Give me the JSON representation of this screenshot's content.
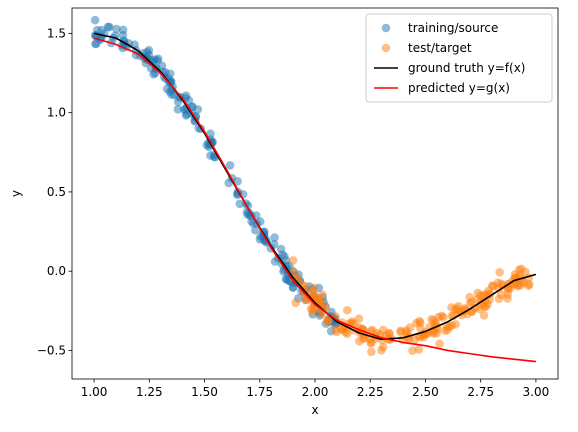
{
  "chart_data": {
    "type": "scatter",
    "xlabel": "x",
    "ylabel": "y",
    "xlim": [
      0.9,
      3.1
    ],
    "ylim": [
      -0.68,
      1.66
    ],
    "xticks": [
      1.0,
      1.25,
      1.5,
      1.75,
      2.0,
      2.25,
      2.5,
      2.75,
      3.0
    ],
    "xtick_labels": [
      "1.00",
      "1.25",
      "1.50",
      "1.75",
      "2.00",
      "2.25",
      "2.50",
      "2.75",
      "3.00"
    ],
    "yticks": [
      -0.5,
      0.0,
      0.5,
      1.0,
      1.5
    ],
    "ytick_labels": [
      "−0.5",
      "0.0",
      "0.5",
      "1.0",
      "1.5"
    ],
    "grid": false,
    "legend_position": "top-right",
    "series": [
      {
        "name": "training/source",
        "kind": "scatter",
        "color": "#1f77b4",
        "x_range": [
          1.0,
          2.1
        ],
        "count": 200,
        "noise_sd": 0.04
      },
      {
        "name": "test/target",
        "kind": "scatter",
        "color": "#ff7f0e",
        "x_range": [
          1.9,
          3.0
        ],
        "count": 200,
        "noise_sd": 0.04
      },
      {
        "name": "ground truth y=f(x)",
        "kind": "line",
        "color": "#000000",
        "x": [
          1.0,
          1.1,
          1.2,
          1.3,
          1.4,
          1.5,
          1.6,
          1.7,
          1.8,
          1.9,
          2.0,
          2.1,
          2.2,
          2.3,
          2.4,
          2.5,
          2.6,
          2.7,
          2.8,
          2.9,
          3.0
        ],
        "y": [
          1.5,
          1.47,
          1.39,
          1.26,
          1.08,
          0.87,
          0.63,
          0.39,
          0.16,
          -0.04,
          -0.2,
          -0.32,
          -0.39,
          -0.43,
          -0.42,
          -0.38,
          -0.32,
          -0.24,
          -0.15,
          -0.06,
          -0.02
        ]
      },
      {
        "name": "predicted y=g(x)",
        "kind": "line",
        "color": "#ff0000",
        "x": [
          1.0,
          1.1,
          1.2,
          1.3,
          1.4,
          1.5,
          1.6,
          1.7,
          1.8,
          1.9,
          2.0,
          2.1,
          2.2,
          2.3,
          2.4,
          2.5,
          2.6,
          2.7,
          2.8,
          2.9,
          3.0
        ],
        "y": [
          1.47,
          1.43,
          1.37,
          1.25,
          1.09,
          0.88,
          0.64,
          0.39,
          0.15,
          -0.06,
          -0.21,
          -0.31,
          -0.37,
          -0.42,
          -0.45,
          -0.47,
          -0.5,
          -0.52,
          -0.54,
          -0.555,
          -0.57
        ]
      }
    ]
  }
}
